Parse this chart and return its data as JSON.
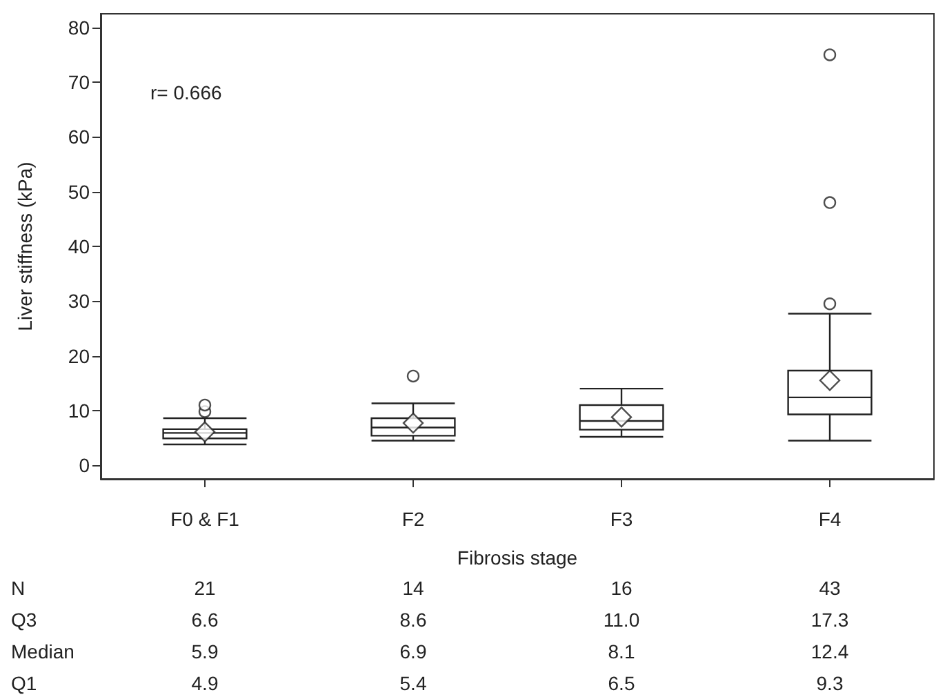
{
  "chart_data": [
    {
      "type": "box",
      "xlabel": "Fibrosis stage",
      "ylabel": "Liver stiffness (kPa)",
      "categories": [
        "F0 & F1",
        "F2",
        "F3",
        "F4"
      ],
      "boxes": [
        {
          "low": 3.8,
          "q1": 4.9,
          "median": 5.9,
          "q3": 6.6,
          "high": 8.6,
          "mean": 6.1,
          "outliers": [
            9.8,
            11
          ]
        },
        {
          "low": 4.5,
          "q1": 5.4,
          "median": 6.9,
          "q3": 8.6,
          "high": 11.3,
          "mean": 7.7,
          "outliers": [
            16.3
          ]
        },
        {
          "low": 5.2,
          "q1": 6.5,
          "median": 8.1,
          "q3": 11.0,
          "high": 14.0,
          "mean": 8.8
        },
        {
          "low": 4.5,
          "q1": 9.3,
          "median": 12.4,
          "q3": 17.3,
          "high": 27.7,
          "mean": 15.5,
          "outliers": [
            29.5,
            48,
            75
          ]
        }
      ],
      "color": "#222222",
      "ylim": [
        -2.5,
        82.5
      ],
      "yticks": [
        0,
        10,
        20,
        30,
        40,
        50,
        60,
        70,
        80
      ],
      "annotations": [
        "r= 0.666"
      ]
    },
    {
      "type": "other",
      "y_categories": [
        "N",
        "Q3",
        "Median",
        "Q1"
      ],
      "cell_labels": [
        [
          "21",
          "14",
          "16",
          "43"
        ],
        [
          "6.6",
          "8.6",
          "11.0",
          "17.3"
        ],
        [
          "5.9",
          "6.9",
          "8.1",
          "12.4"
        ],
        [
          "4.9",
          "5.4",
          "6.5",
          "9.3"
        ]
      ]
    }
  ]
}
